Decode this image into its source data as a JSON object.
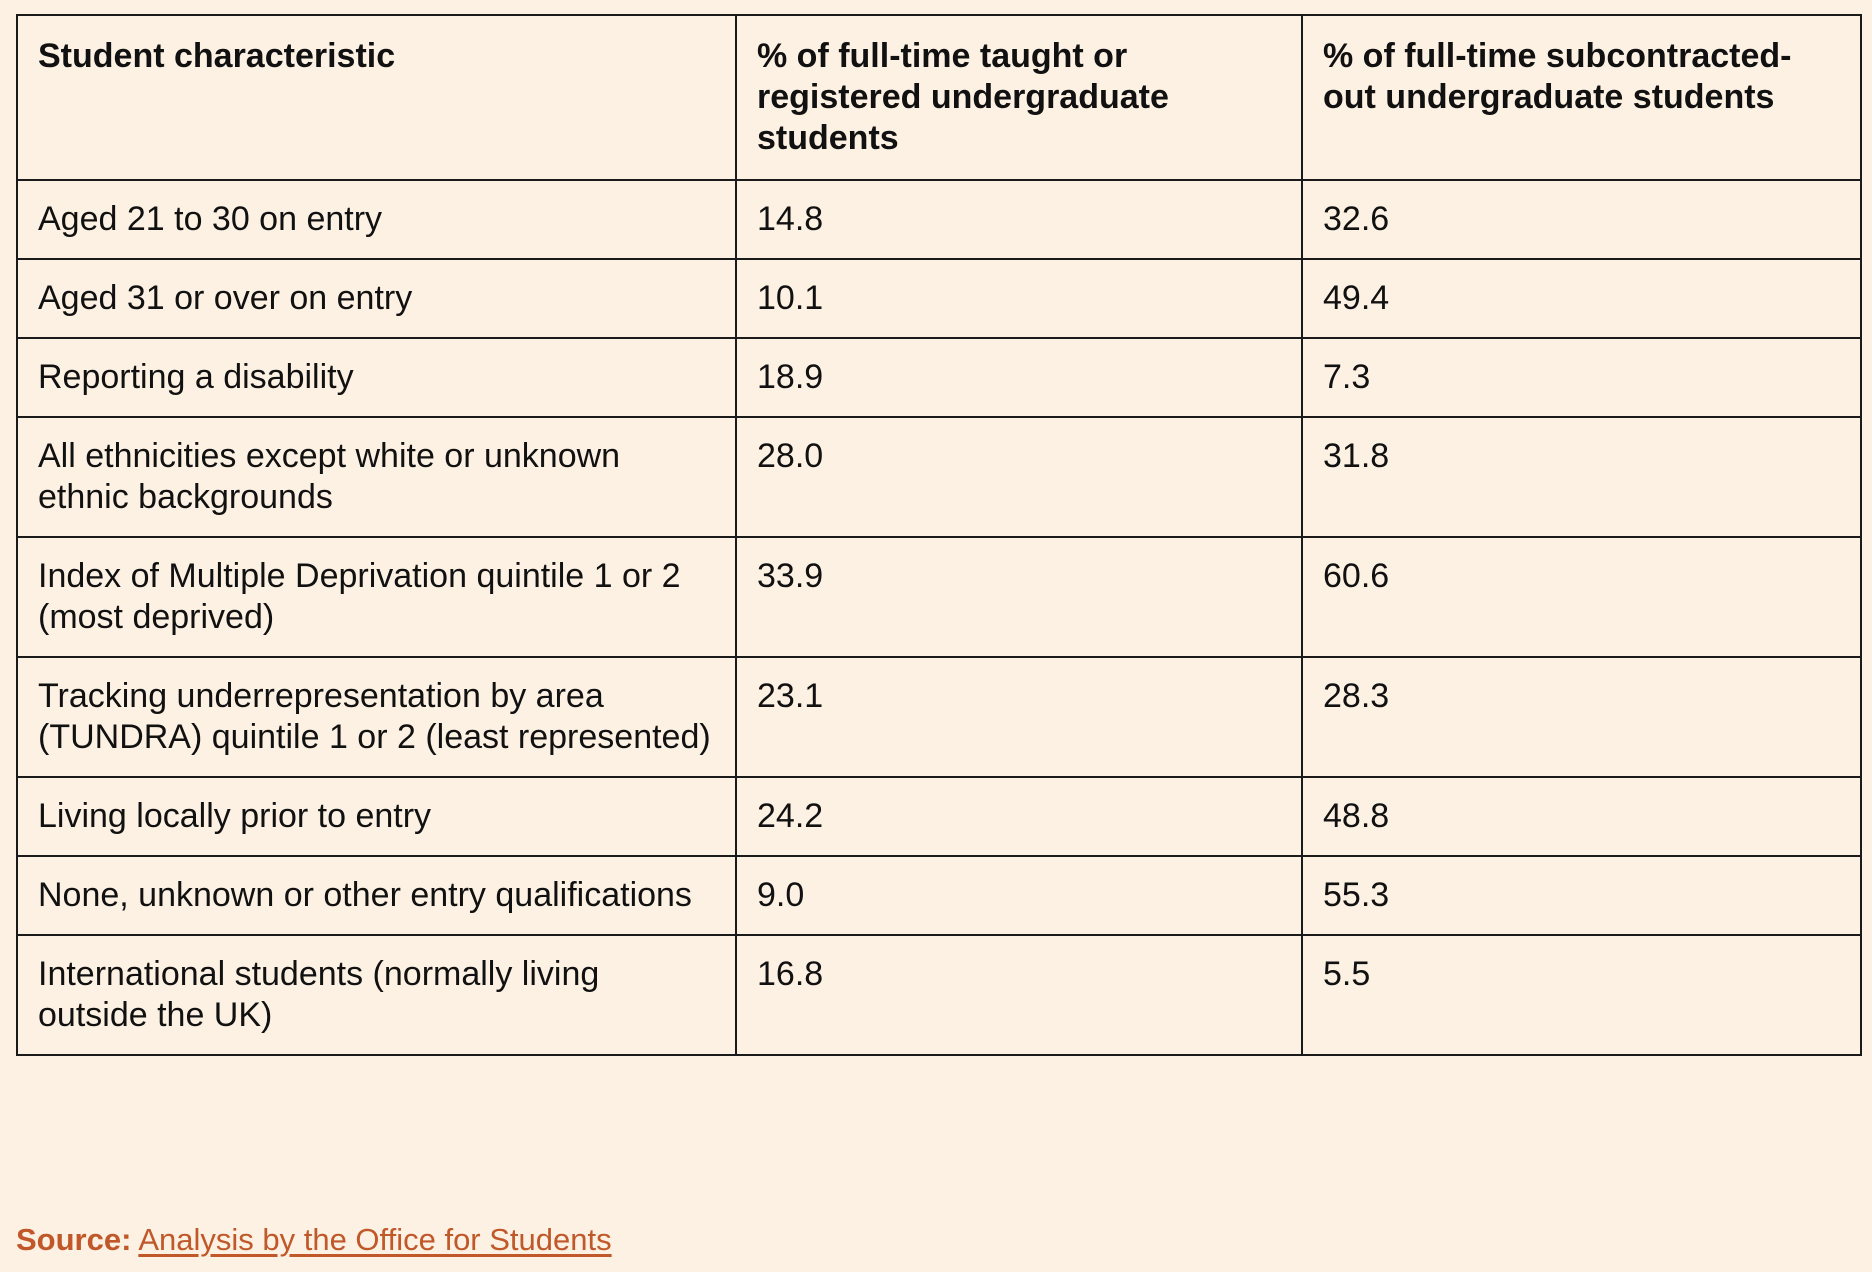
{
  "table": {
    "headers": [
      "Student characteristic",
      "% of full-time taught or registered undergraduate students",
      "% of full-time subcontracted-out undergraduate students"
    ],
    "rows": [
      [
        "Aged 21 to 30 on entry",
        "14.8",
        "32.6"
      ],
      [
        "Aged 31 or over on entry",
        "10.1",
        "49.4"
      ],
      [
        "Reporting a disability",
        "18.9",
        "7.3"
      ],
      [
        "All ethnicities except white or unknown ethnic backgrounds",
        "28.0",
        "31.8"
      ],
      [
        "Index of Multiple Deprivation quintile 1 or 2 (most deprived)",
        "33.9",
        "60.6"
      ],
      [
        "Tracking underrepresentation by area (TUNDRA) quintile 1 or 2 (least represented)",
        "23.1",
        "28.3"
      ],
      [
        "Living locally prior to entry",
        "24.2",
        "48.8"
      ],
      [
        "None, unknown or other entry qualifications",
        "9.0",
        "55.3"
      ],
      [
        "International students (normally living outside the UK)",
        "16.8",
        "5.5"
      ]
    ]
  },
  "source": {
    "label": "Source:",
    "link_text": "Analysis by the Office for Students"
  },
  "colors": {
    "background": "#fdf1e3",
    "accent": "#c0582a",
    "border": "#1a1a1a"
  }
}
